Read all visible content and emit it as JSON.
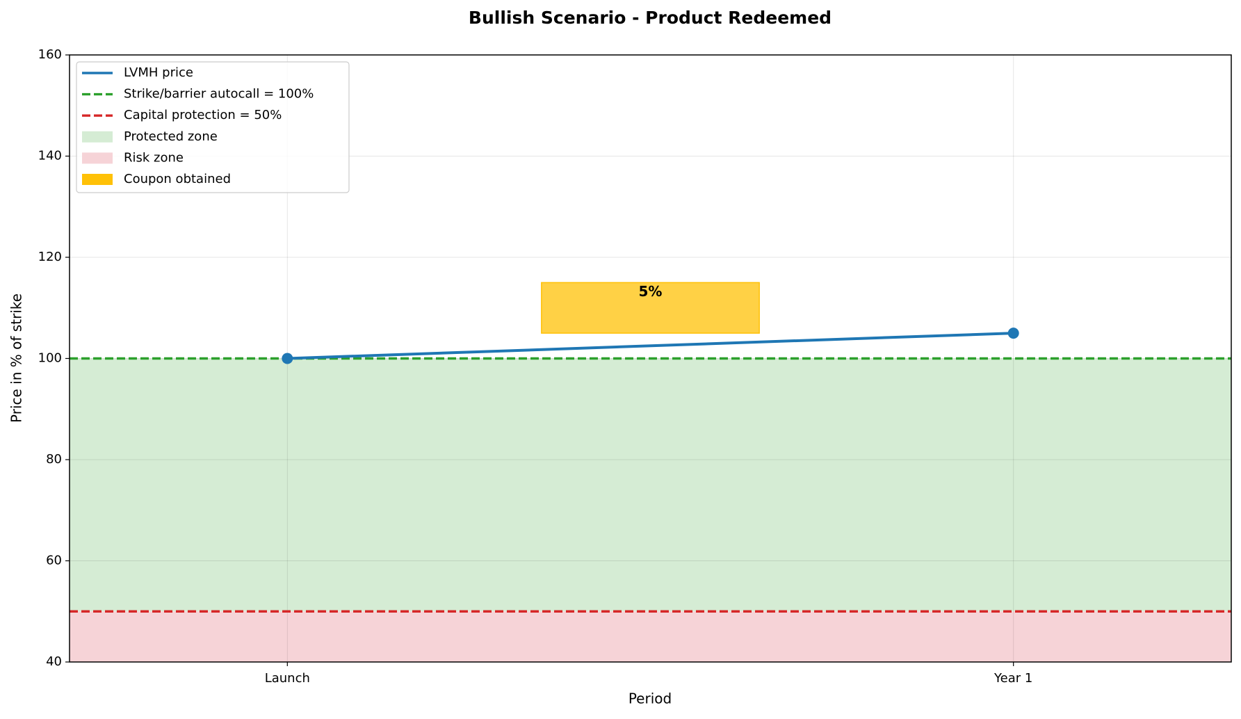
{
  "chart_data": {
    "type": "line",
    "title": "Bullish Scenario - Product Redeemed",
    "xlabel": "Period",
    "ylabel": "Price in % of strike",
    "categories": [
      "Launch",
      "Year 1"
    ],
    "series": [
      {
        "name": "LVMH price",
        "color": "#1f77b4",
        "values": [
          100,
          105
        ]
      }
    ],
    "hlines": [
      {
        "name": "Strike/barrier autocall = 100%",
        "value": 100,
        "color": "#2ca02c"
      },
      {
        "name": "Capital protection = 50%",
        "value": 50,
        "color": "#d62728"
      }
    ],
    "zones": [
      {
        "name": "Protected zone",
        "from": 50,
        "to": 100,
        "color": "#d5ecd4"
      },
      {
        "name": "Risk zone",
        "from": 40,
        "to": 50,
        "color": "#f6d3d7"
      }
    ],
    "coupon": {
      "name": "Coupon obtained",
      "label": "5%",
      "from": 105,
      "to": 115,
      "color": "#ffc107"
    },
    "ylim": [
      40,
      160
    ],
    "yticks": [
      40,
      60,
      80,
      100,
      120,
      140,
      160
    ],
    "grid": true
  }
}
